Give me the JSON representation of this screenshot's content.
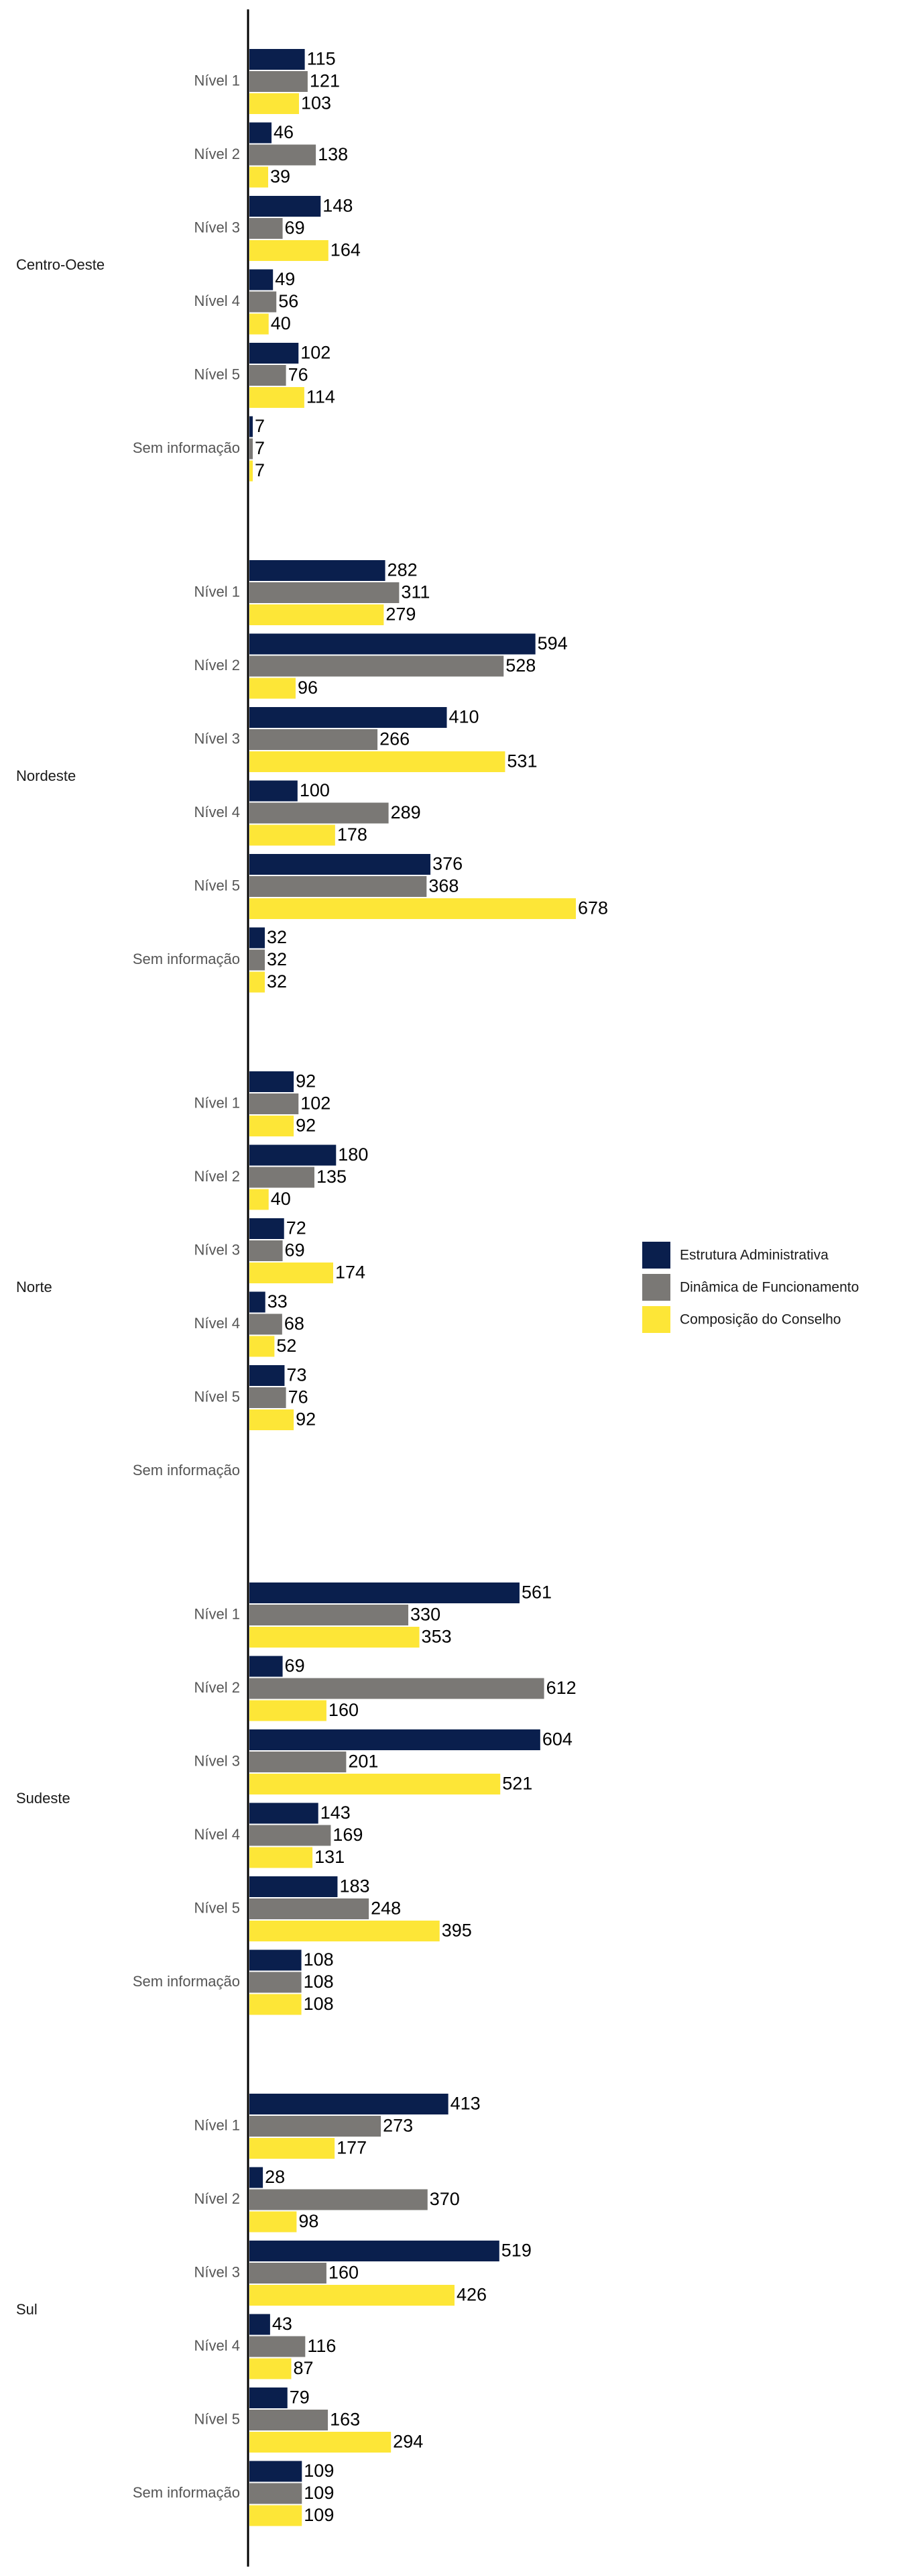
{
  "chart_data": {
    "type": "bar",
    "orientation": "horizontal",
    "grouped_by": "regions",
    "xlim": [
      0,
      700
    ],
    "grid": false,
    "legend_position": "right",
    "series": [
      {
        "name": "Estrutura Administrativa",
        "color": "#0a1f4d"
      },
      {
        "name": "Dinâmica de Funcionamento",
        "color": "#7a7875"
      },
      {
        "name": "Composição do Conselho",
        "color": "#fde637"
      }
    ],
    "groups": [
      {
        "region": "Centro-Oeste",
        "levels": [
          {
            "label": "Nível 1",
            "values": [
              115,
              121,
              103
            ]
          },
          {
            "label": "Nível 2",
            "values": [
              46,
              138,
              39
            ]
          },
          {
            "label": "Nível 3",
            "values": [
              148,
              69,
              164
            ]
          },
          {
            "label": "Nível 4",
            "values": [
              49,
              56,
              40
            ]
          },
          {
            "label": "Nível 5",
            "values": [
              102,
              76,
              114
            ]
          },
          {
            "label": "Sem informação",
            "values": [
              7,
              7,
              7
            ]
          }
        ]
      },
      {
        "region": "Nordeste",
        "levels": [
          {
            "label": "Nível 1",
            "values": [
              282,
              311,
              279
            ]
          },
          {
            "label": "Nível 2",
            "values": [
              594,
              528,
              96
            ]
          },
          {
            "label": "Nível 3",
            "values": [
              410,
              266,
              531
            ]
          },
          {
            "label": "Nível 4",
            "values": [
              100,
              289,
              178
            ]
          },
          {
            "label": "Nível 5",
            "values": [
              376,
              368,
              678
            ]
          },
          {
            "label": "Sem informação",
            "values": [
              32,
              32,
              32
            ]
          }
        ]
      },
      {
        "region": "Norte",
        "levels": [
          {
            "label": "Nível 1",
            "values": [
              92,
              102,
              92
            ]
          },
          {
            "label": "Nível 2",
            "values": [
              180,
              135,
              40
            ]
          },
          {
            "label": "Nível 3",
            "values": [
              72,
              69,
              174
            ]
          },
          {
            "label": "Nível 4",
            "values": [
              33,
              68,
              52
            ]
          },
          {
            "label": "Nível 5",
            "values": [
              73,
              76,
              92
            ]
          },
          {
            "label": "Sem informação",
            "values": [
              null,
              null,
              null
            ]
          }
        ]
      },
      {
        "region": "Sudeste",
        "levels": [
          {
            "label": "Nível 1",
            "values": [
              561,
              330,
              353
            ]
          },
          {
            "label": "Nível 2",
            "values": [
              69,
              612,
              160
            ]
          },
          {
            "label": "Nível 3",
            "values": [
              604,
              201,
              521
            ]
          },
          {
            "label": "Nível 4",
            "values": [
              143,
              169,
              131
            ]
          },
          {
            "label": "Nível 5",
            "values": [
              183,
              248,
              395
            ]
          },
          {
            "label": "Sem informação",
            "values": [
              108,
              108,
              108
            ]
          }
        ]
      },
      {
        "region": "Sul",
        "levels": [
          {
            "label": "Nível 1",
            "values": [
              413,
              273,
              177
            ]
          },
          {
            "label": "Nível 2",
            "values": [
              28,
              370,
              98
            ]
          },
          {
            "label": "Nível 3",
            "values": [
              519,
              160,
              426
            ]
          },
          {
            "label": "Nível 4",
            "values": [
              43,
              116,
              87
            ]
          },
          {
            "label": "Nível 5",
            "values": [
              79,
              163,
              294
            ]
          },
          {
            "label": "Sem informação",
            "values": [
              109,
              109,
              109
            ]
          }
        ]
      }
    ]
  }
}
